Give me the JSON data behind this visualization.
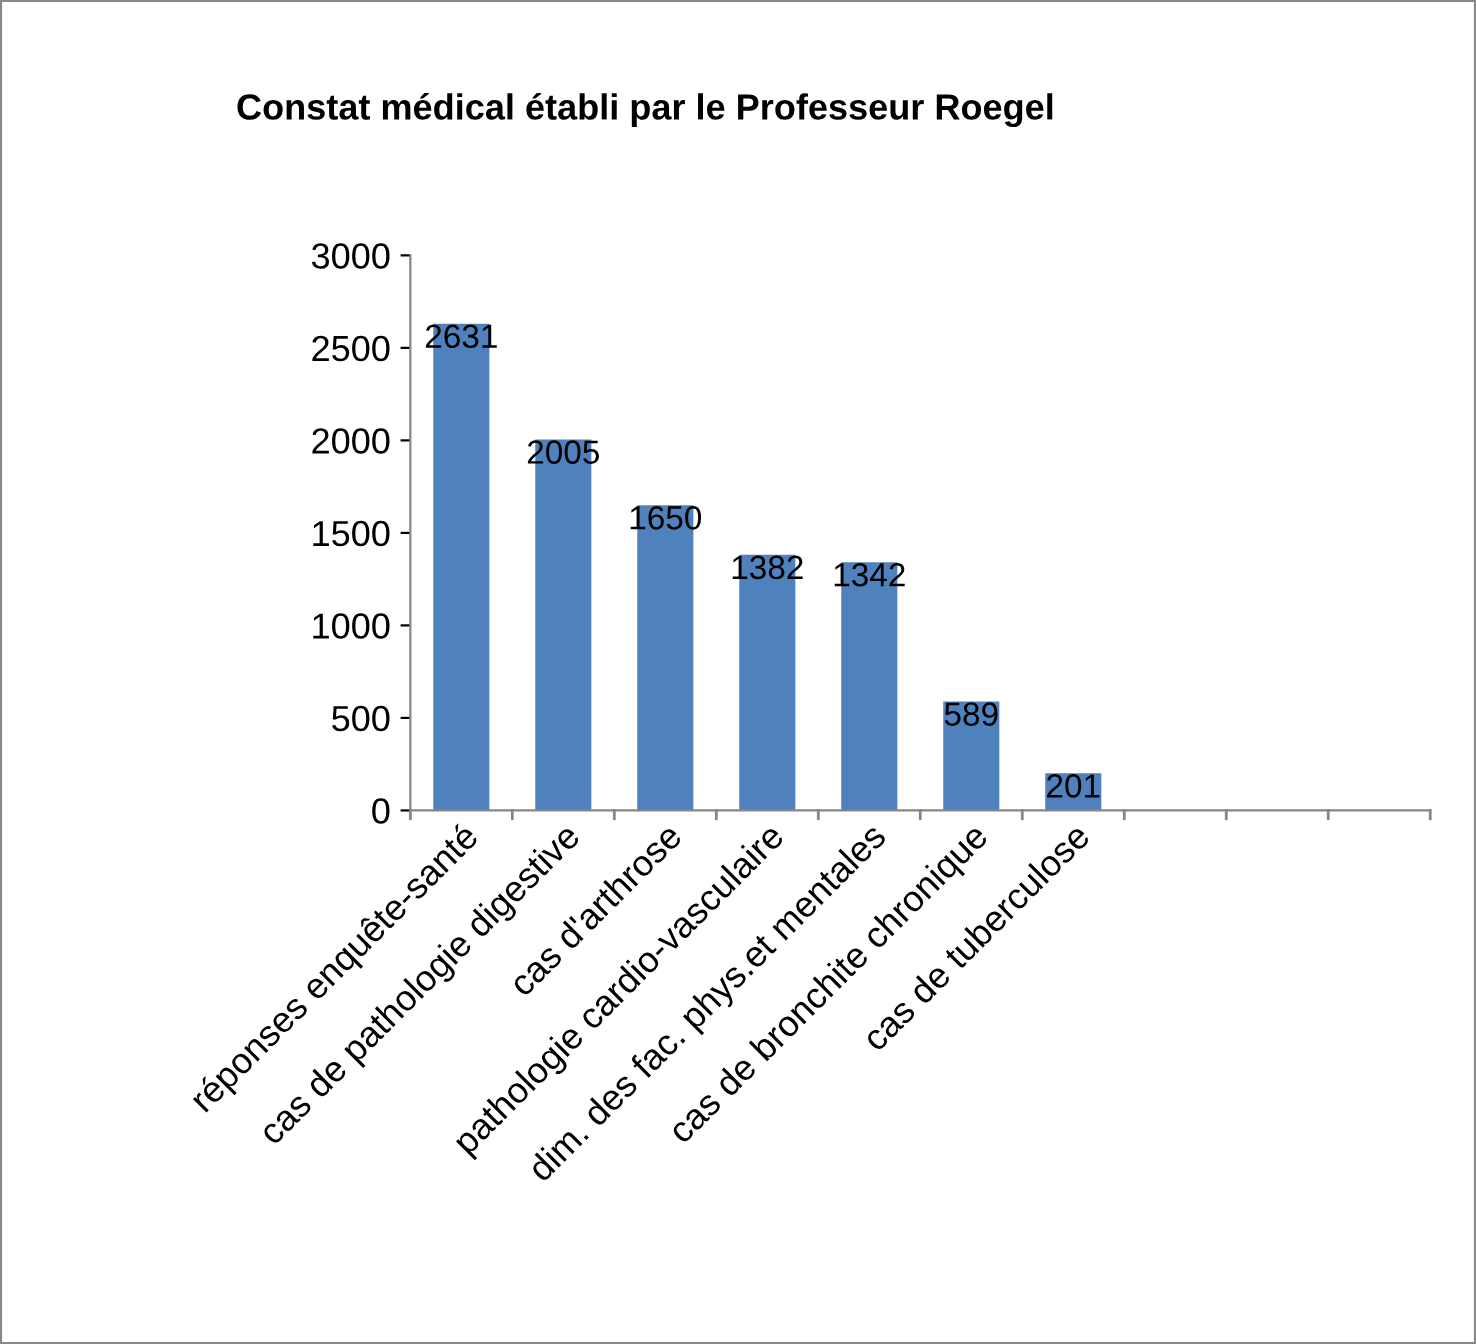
{
  "chart_data": {
    "type": "bar",
    "title": "Constat médical établi par le Professeur Roegel",
    "categories": [
      "réponses enquête-santé",
      "cas de pathologie digestive",
      "cas d'arthrose",
      "pathologie cardio-vasculaire",
      "dim. des fac. phys.et mentales",
      "cas de bronchite chronique",
      "cas de tuberculose",
      null,
      null,
      null
    ],
    "values": [
      2631,
      2005,
      1650,
      1382,
      1342,
      589,
      201,
      null,
      null,
      null
    ],
    "color": "#4f81bd",
    "ylim": [
      0,
      3000
    ],
    "yticks": [
      0,
      500,
      1000,
      1500,
      2000,
      2500,
      3000
    ],
    "grid": false,
    "data_labels": true
  }
}
